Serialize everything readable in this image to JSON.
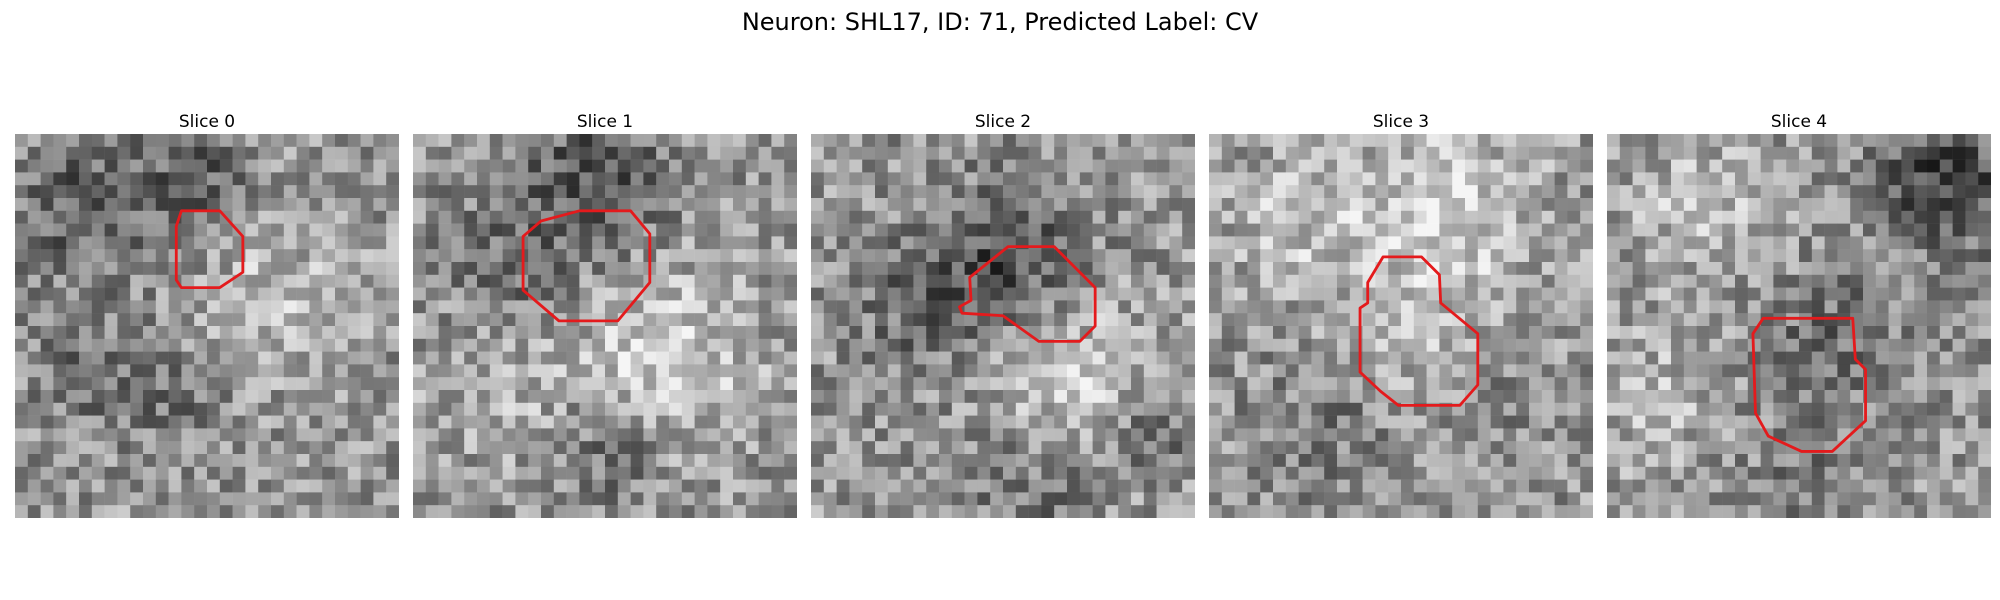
{
  "figure": {
    "title": "Neuron: SHL17, ID: 71, Predicted Label: CV"
  },
  "panels": [
    {
      "title": "Slice 0"
    },
    {
      "title": "Slice 1"
    },
    {
      "title": "Slice 2"
    },
    {
      "title": "Slice 3"
    },
    {
      "title": "Slice 4"
    }
  ],
  "colors": {
    "roi_outline": "#e41a1c",
    "background": "#ffffff"
  }
}
